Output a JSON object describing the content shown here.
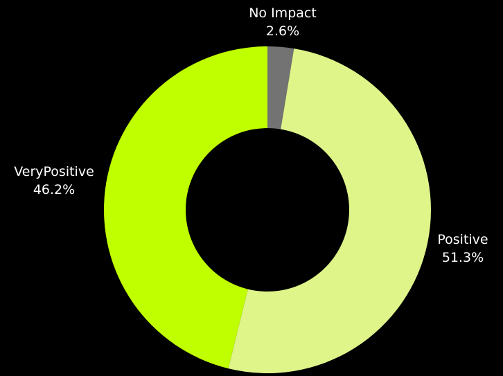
{
  "chart_data": {
    "type": "pie",
    "variant": "donut",
    "title": "",
    "start_angle_deg": 0,
    "direction": "clockwise",
    "slices": [
      {
        "label": "No Impact",
        "value": 2.6,
        "value_label": "2.6%",
        "color": "#737373"
      },
      {
        "label": "Positive",
        "value": 51.3,
        "value_label": "51.3%",
        "color": "#dff58a"
      },
      {
        "label": "VeryPositive",
        "value": 46.2,
        "value_label": "46.2%",
        "color": "#c0ff00"
      }
    ],
    "background": "#000000",
    "label_color": "#ffffff"
  }
}
